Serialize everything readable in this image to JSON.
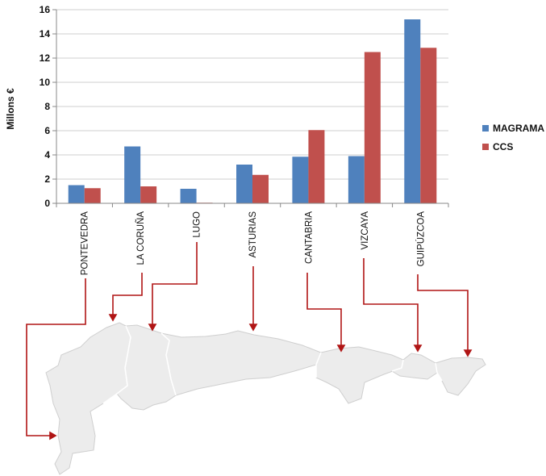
{
  "chart_data": {
    "type": "bar",
    "title": "",
    "xlabel": "",
    "ylabel": "Millons €",
    "ylim": [
      0,
      16
    ],
    "yticks": [
      0,
      2,
      4,
      6,
      8,
      10,
      12,
      14,
      16
    ],
    "grid": true,
    "legend_position": "right",
    "categories": [
      "PONTEVEDRA",
      "LA CORUÑA",
      "LUGO",
      "ASTURIAS",
      "CANTABRIA",
      "VIZCAYA",
      "GUIPÚZCOA"
    ],
    "series": [
      {
        "name": "MAGRAMA",
        "color": "#4f81bd",
        "values": [
          1.5,
          4.7,
          1.2,
          3.2,
          3.85,
          3.9,
          15.2
        ]
      },
      {
        "name": "CCS",
        "color": "#c0504d",
        "values": [
          1.25,
          1.4,
          0.05,
          2.35,
          6.05,
          12.5,
          12.85
        ]
      }
    ]
  },
  "colors": {
    "arrow": "#b01515",
    "map_fill": "#ececec",
    "map_stroke": "#cfcfcf"
  }
}
